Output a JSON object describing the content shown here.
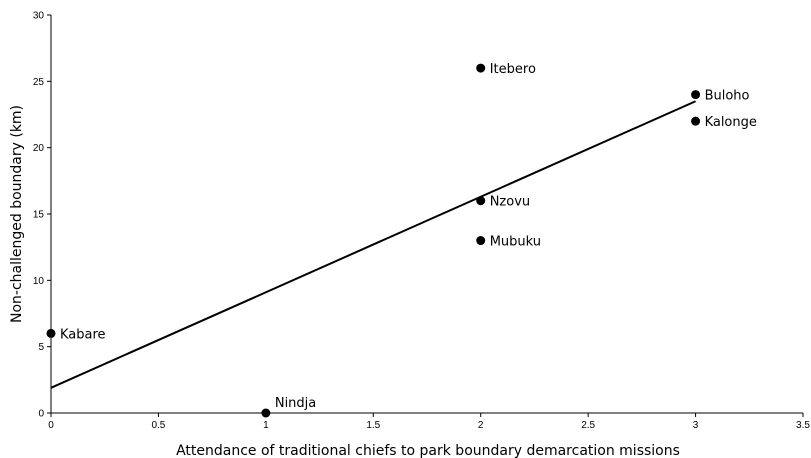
{
  "chart_data": {
    "type": "scatter",
    "title": "",
    "xlabel": "Attendance of traditional chiefs to park boundary demarcation missions",
    "ylabel": "Non-challenged boundary (km)",
    "xlim": [
      0,
      3.5
    ],
    "ylim": [
      0,
      30
    ],
    "xticks": [
      0,
      0.5,
      1,
      1.5,
      2,
      2.5,
      3,
      3.5
    ],
    "xtick_labels": [
      "0",
      "0.5",
      "1",
      "1.5",
      "2",
      "2.5",
      "3",
      "3.5"
    ],
    "yticks": [
      0,
      5,
      10,
      15,
      20,
      25,
      30
    ],
    "ytick_labels": [
      "0",
      "5",
      "10",
      "15",
      "20",
      "25",
      "30"
    ],
    "grid": false,
    "legend": "none",
    "points": [
      {
        "label": "Kabare",
        "x": 0,
        "y": 6
      },
      {
        "label": "Nindja",
        "x": 1,
        "y": 0
      },
      {
        "label": "Itebero",
        "x": 2,
        "y": 26
      },
      {
        "label": "Nzovu",
        "x": 2,
        "y": 16
      },
      {
        "label": "Mubuku",
        "x": 2,
        "y": 13
      },
      {
        "label": "Buloho",
        "x": 3,
        "y": 24
      },
      {
        "label": "Kalonge",
        "x": 3,
        "y": 22
      }
    ],
    "trendline": {
      "type": "linear",
      "x": [
        0,
        3
      ],
      "y": [
        1.9,
        23.5
      ]
    },
    "colors": {
      "marker": "#000000",
      "line": "#000000",
      "axis": "#000000"
    }
  }
}
